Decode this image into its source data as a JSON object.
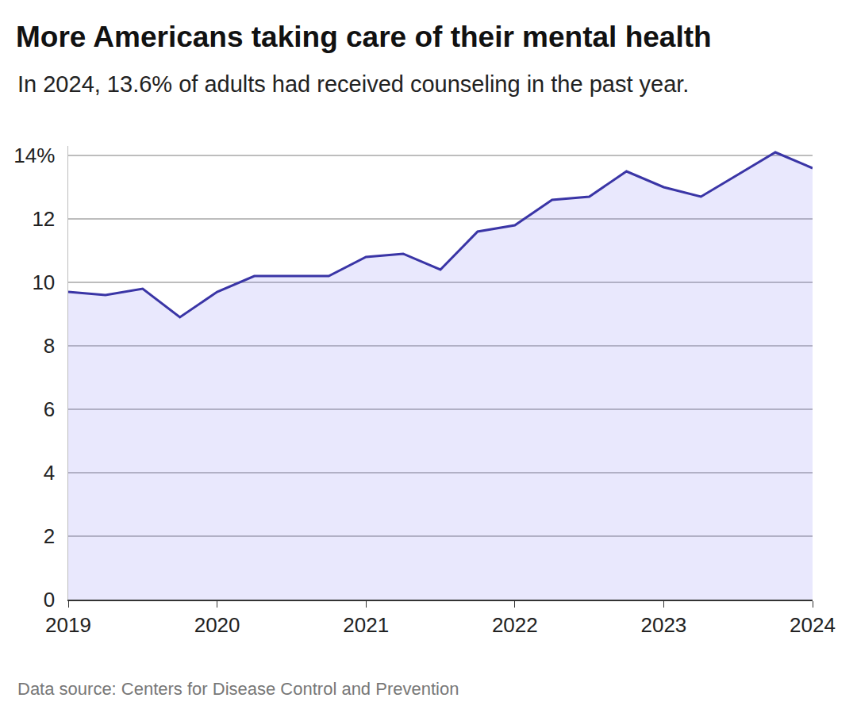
{
  "chart_data": {
    "type": "area",
    "title": "More Americans taking care of their mental health",
    "subtitle": "In 2024, 13.6% of adults had received counseling in the past year.",
    "source": "Data source: Centers for Disease Control and Prevention",
    "x": [
      2019,
      2019.25,
      2019.5,
      2019.75,
      2020,
      2020.25,
      2020.5,
      2020.75,
      2021,
      2021.25,
      2021.5,
      2021.75,
      2022,
      2022.25,
      2022.5,
      2022.75,
      2023,
      2023.25,
      2023.5,
      2023.75,
      2024
    ],
    "values": [
      9.7,
      9.6,
      9.8,
      8.9,
      9.7,
      10.2,
      10.2,
      10.2,
      10.8,
      10.9,
      10.4,
      11.6,
      11.8,
      12.6,
      12.7,
      13.5,
      13.0,
      12.7,
      13.4,
      14.1,
      13.6
    ],
    "color": "#3a35a6",
    "xlim": [
      2019,
      2024
    ],
    "xticks": [
      2019,
      2020,
      2021,
      2022,
      2023,
      2024
    ],
    "ylim": [
      0,
      14.3
    ],
    "yticks": [
      0,
      2,
      4,
      6,
      8,
      10,
      12,
      {
        "value": 14,
        "label": "14%"
      }
    ],
    "grid": true
  }
}
